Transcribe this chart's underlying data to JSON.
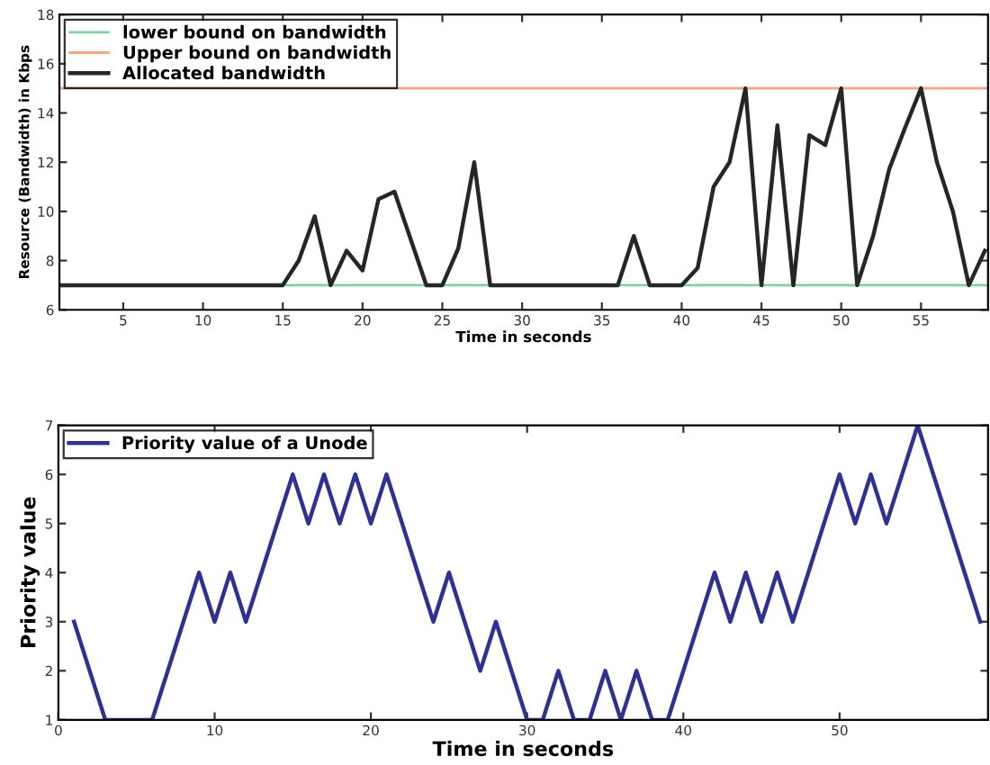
{
  "chart_data": [
    {
      "type": "line",
      "xlabel": "Time in seconds",
      "ylabel": "Resource (Bandwidth) in Kbps",
      "xlim": [
        1,
        59.2
      ],
      "xticks": [
        5,
        10,
        15,
        20,
        25,
        30,
        35,
        40,
        45,
        50,
        55
      ],
      "ylim": [
        6,
        18
      ],
      "yticks": [
        6,
        8,
        10,
        12,
        14,
        16,
        18
      ],
      "grid": false,
      "legend": "top left",
      "x": [
        1,
        2,
        3,
        4,
        5,
        6,
        7,
        8,
        9,
        10,
        11,
        12,
        13,
        14,
        15,
        16,
        17,
        18,
        19,
        20,
        21,
        22,
        23,
        24,
        25,
        26,
        27,
        28,
        29,
        30,
        31,
        32,
        33,
        34,
        35,
        36,
        37,
        38,
        39,
        40,
        41,
        42,
        43,
        44,
        45,
        46,
        47,
        48,
        49,
        50,
        51,
        52,
        53,
        54,
        55,
        56,
        57,
        58,
        59
      ],
      "ref_lines": [
        {
          "axis": "y",
          "value": 7,
          "label": "lower bound on bandwidth",
          "color": "#7fd3a0"
        },
        {
          "axis": "y",
          "value": 15,
          "label": "Upper bound on bandwidth",
          "color": "#f4a582"
        }
      ],
      "series": [
        {
          "name": "Allocated bandwidth",
          "color": "#262626",
          "values": [
            7,
            7,
            7,
            7,
            7,
            7,
            7,
            7,
            7,
            7,
            7,
            7,
            7,
            7,
            7,
            8,
            9.8,
            7,
            8.4,
            7.6,
            10.5,
            10.8,
            8.9,
            7,
            7,
            8.5,
            12,
            7,
            7,
            7,
            7,
            7,
            7,
            7,
            7,
            7,
            9,
            7,
            7,
            7,
            7.7,
            11,
            12,
            15,
            7,
            13.5,
            7,
            13.1,
            12.7,
            15,
            7,
            9,
            11.7,
            13.4,
            15,
            12,
            10,
            7,
            8.4
          ]
        }
      ]
    },
    {
      "type": "line",
      "xlabel": "Time in seconds",
      "ylabel": "Priority value",
      "xlim": [
        0,
        59.5
      ],
      "xticks": [
        0,
        10,
        20,
        30,
        40,
        50
      ],
      "ylim": [
        1,
        7
      ],
      "yticks": [
        1,
        2,
        3,
        4,
        5,
        6,
        7
      ],
      "grid": false,
      "legend": "top left",
      "x": [
        1,
        2,
        3,
        4,
        5,
        6,
        7,
        8,
        9,
        10,
        11,
        12,
        13,
        14,
        15,
        16,
        17,
        18,
        19,
        20,
        21,
        22,
        23,
        24,
        25,
        26,
        27,
        28,
        29,
        30,
        31,
        32,
        33,
        34,
        35,
        36,
        37,
        38,
        39,
        40,
        41,
        42,
        43,
        44,
        45,
        46,
        47,
        48,
        49,
        50,
        51,
        52,
        53,
        54,
        55,
        56,
        57,
        58,
        59
      ],
      "series": [
        {
          "name": "Priority value of a Unode",
          "color": "#2e3192",
          "values": [
            3,
            2,
            1,
            1,
            1,
            1,
            2,
            3,
            4,
            3,
            4,
            3,
            4,
            5,
            6,
            5,
            6,
            5,
            6,
            5,
            6,
            5,
            4,
            3,
            4,
            3,
            2,
            3,
            2,
            1,
            1,
            2,
            1,
            1,
            2,
            1,
            2,
            1,
            1,
            2,
            3,
            4,
            3,
            4,
            3,
            4,
            3,
            4,
            5,
            6,
            5,
            6,
            5,
            6,
            7,
            6,
            5,
            4,
            3
          ]
        }
      ]
    }
  ]
}
